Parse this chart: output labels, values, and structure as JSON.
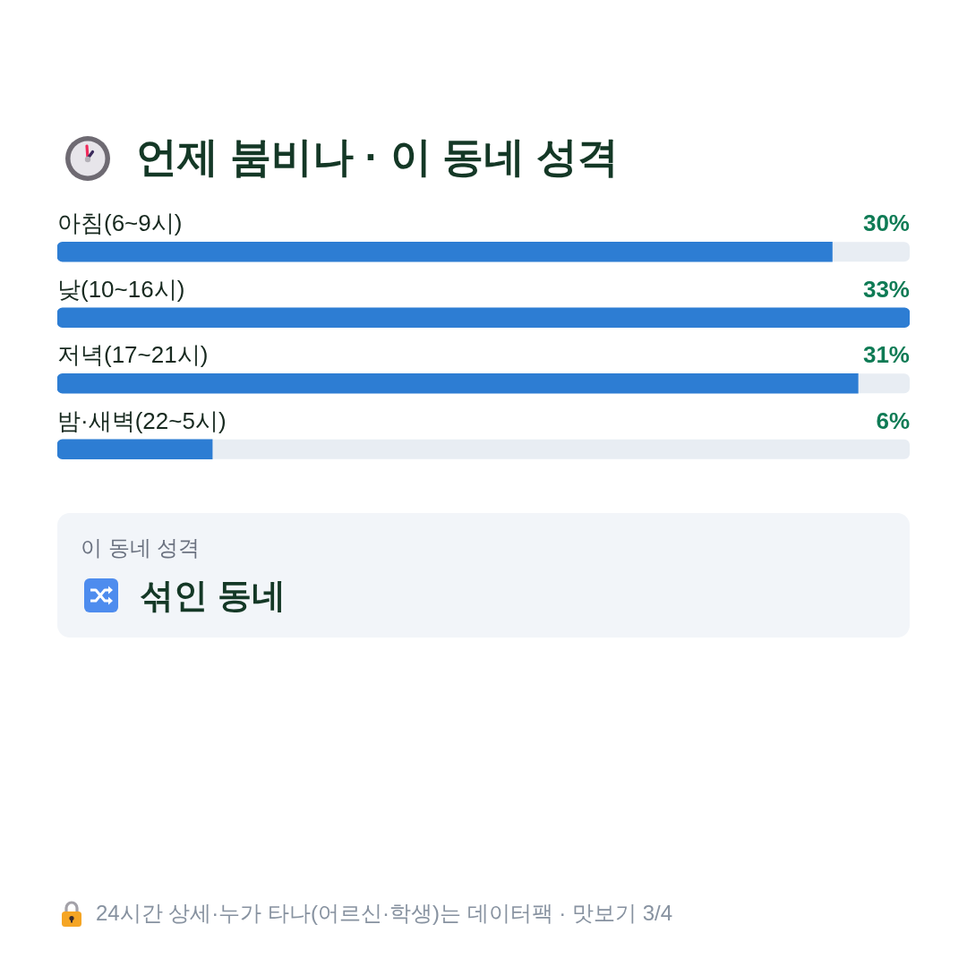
{
  "chart_data": [
    {
      "type": "bar",
      "orientation": "horizontal",
      "title": "언제 붐비나 · 이 동네 성격",
      "categories": [
        "아침(6~9시)",
        "낮(10~16시)",
        "저녁(17~21시)",
        "밤·새벽(22~5시)"
      ],
      "values": [
        30,
        33,
        31,
        6
      ],
      "value_labels": [
        "30%",
        "33%",
        "31%",
        "6%"
      ],
      "color": "#2d7dd3",
      "annotations": [
        "24시간 상세·누가 타나(어르신·학생)는 데이터팩 · 맛보기 3/4"
      ]
    },
    {
      "type": "other",
      "title": "이 동네 성격",
      "annotations": [
        "섞인 동네"
      ]
    }
  ]
}
